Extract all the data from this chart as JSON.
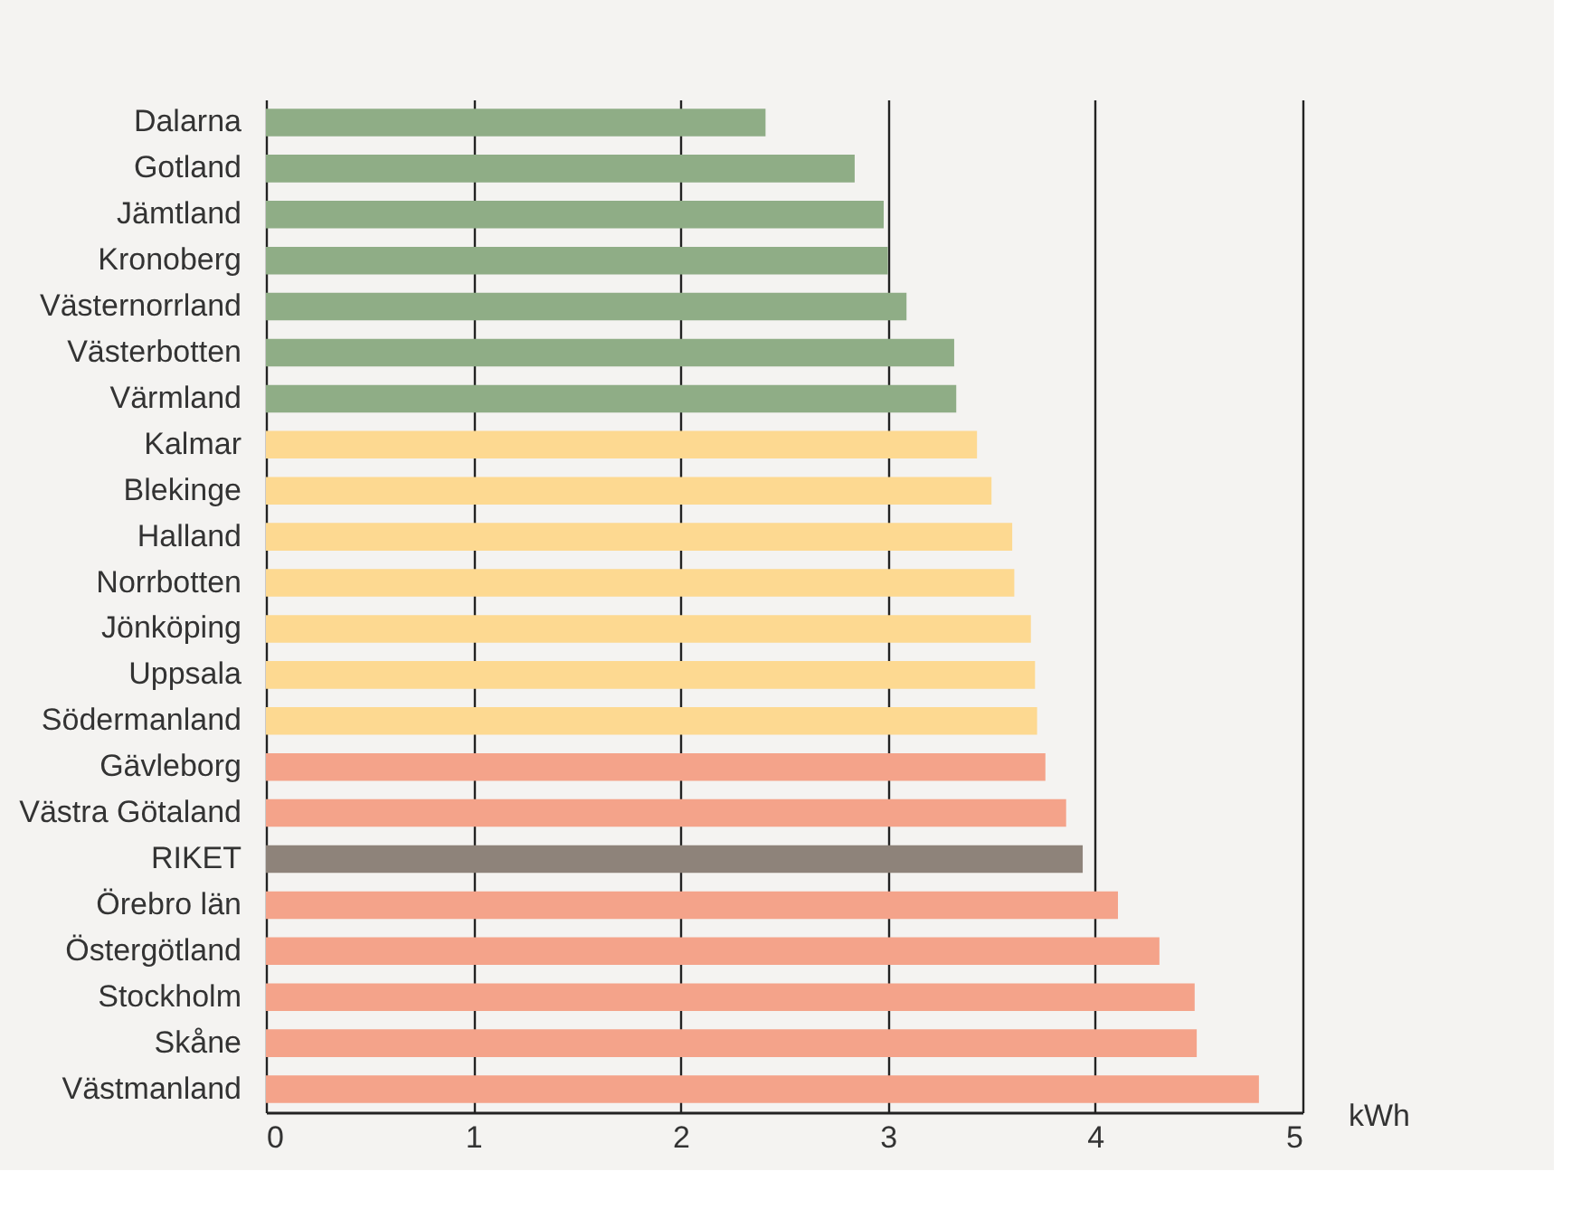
{
  "chart_data": {
    "type": "bar",
    "orientation": "horizontal",
    "xlabel": "kWh",
    "categories": [
      "Dalarna",
      "Gotland",
      "Jämtland",
      "Kronoberg",
      "Västernorrland",
      "Västerbotten",
      "Värmland",
      "Kalmar",
      "Blekinge",
      "Halland",
      "Norrbotten",
      "Jönköping",
      "Uppsala",
      "Södermanland",
      "Gävleborg",
      "Västra Götaland",
      "RIKET",
      "Örebro län",
      "Östergötland",
      "Stockholm",
      "Skåne",
      "Västmanland"
    ],
    "values": [
      2.41,
      2.84,
      2.98,
      3.0,
      3.09,
      3.32,
      3.33,
      3.43,
      3.5,
      3.6,
      3.61,
      3.69,
      3.71,
      3.72,
      3.76,
      3.86,
      3.94,
      4.11,
      4.31,
      4.48,
      4.49,
      4.79
    ],
    "colors": [
      "#8fad86",
      "#8fad86",
      "#8fad86",
      "#8fad86",
      "#8fad86",
      "#8fad86",
      "#8fad86",
      "#fdd991",
      "#fdd991",
      "#fdd991",
      "#fdd991",
      "#fdd991",
      "#fdd991",
      "#fdd991",
      "#f4a38a",
      "#f4a38a",
      "#8e837a",
      "#f4a38a",
      "#f4a38a",
      "#f4a38a",
      "#f4a38a",
      "#f4a38a"
    ],
    "xlim": [
      0,
      5
    ],
    "xticks": [
      0,
      1,
      2,
      3,
      4,
      5
    ],
    "grid": "x"
  }
}
